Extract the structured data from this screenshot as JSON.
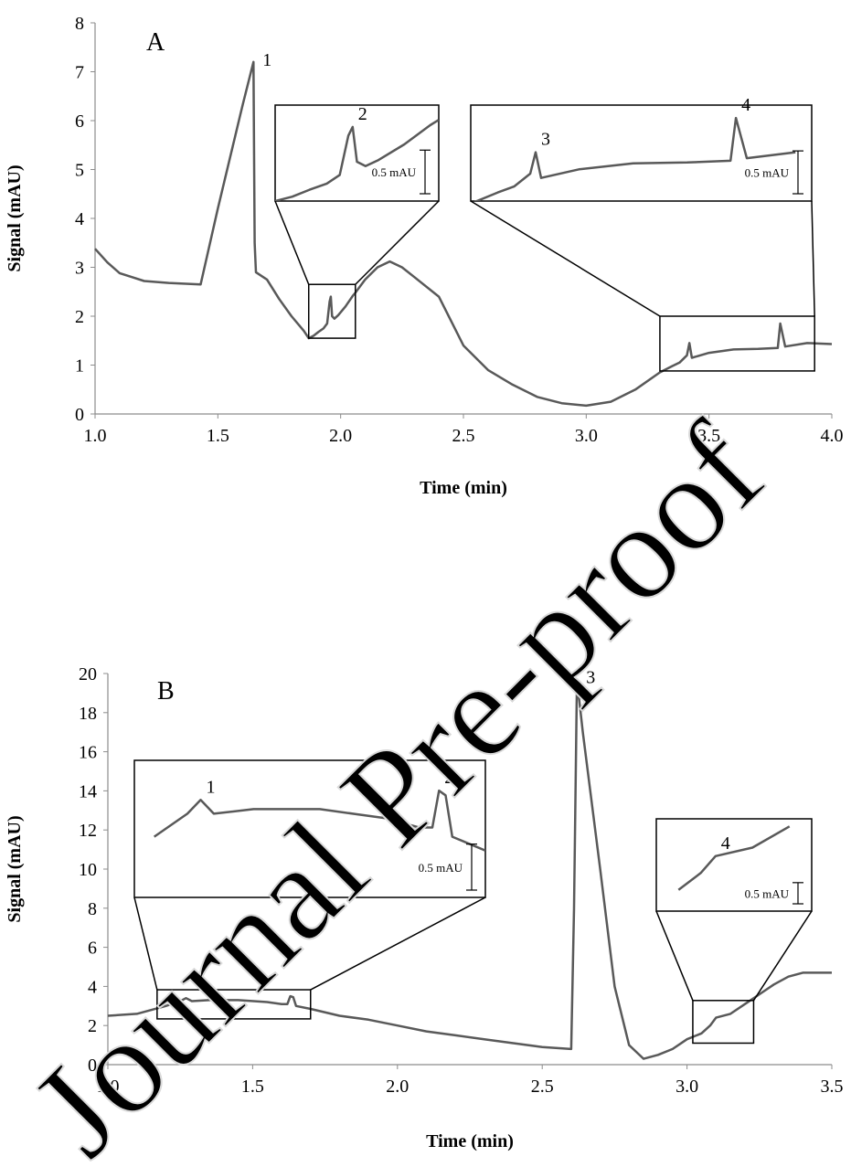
{
  "watermark": "Journal Pre-proof",
  "chart_data": [
    {
      "type": "line",
      "panel_label": "A",
      "x_label": "Time (min)",
      "y_label": "Signal (mAU)",
      "xlim": [
        1,
        4
      ],
      "xticks": [
        {
          "value": 1,
          "label": "1.0"
        },
        1.5,
        {
          "value": 2,
          "label": "2.0"
        },
        2.5,
        {
          "value": 3,
          "label": "3.0"
        },
        3.5,
        {
          "value": 4,
          "label": "4.0"
        }
      ],
      "ylim": [
        0,
        8
      ],
      "yticks": [
        0,
        1,
        2,
        3,
        4,
        5,
        6,
        7,
        8
      ],
      "series": [
        {
          "color": "#595959",
          "x": [
            1.0,
            1.05,
            1.1,
            1.15,
            1.2,
            1.3,
            1.43,
            1.5,
            1.6,
            1.645,
            1.65,
            1.655,
            1.7,
            1.75,
            1.8,
            1.85,
            1.87,
            1.89,
            1.91,
            1.93,
            1.945,
            1.955,
            1.96,
            1.965,
            1.975,
            1.99,
            2.02,
            2.05,
            2.06,
            2.1,
            2.15,
            2.2,
            2.25,
            2.3,
            2.4,
            2.5,
            2.6,
            2.7,
            2.8,
            2.9,
            3.0,
            3.1,
            3.2,
            3.3,
            3.35,
            3.38,
            3.41,
            3.42,
            3.43,
            3.5,
            3.6,
            3.7,
            3.78,
            3.79,
            3.81,
            3.9,
            4.0
          ],
          "values": [
            3.38,
            3.1,
            2.88,
            2.8,
            2.72,
            2.68,
            2.65,
            4.2,
            6.3,
            7.2,
            3.5,
            2.9,
            2.75,
            2.35,
            2.0,
            1.7,
            1.55,
            1.6,
            1.68,
            1.75,
            1.85,
            2.3,
            2.4,
            2.0,
            1.95,
            2.02,
            2.2,
            2.42,
            2.48,
            2.75,
            3.0,
            3.12,
            3.0,
            2.8,
            2.4,
            1.4,
            0.9,
            0.6,
            0.35,
            0.22,
            0.17,
            0.25,
            0.5,
            0.85,
            0.98,
            1.05,
            1.2,
            1.45,
            1.15,
            1.25,
            1.32,
            1.33,
            1.35,
            1.85,
            1.38,
            1.45,
            1.43
          ]
        }
      ],
      "annotations": [
        {
          "text": "1",
          "x": 1.645,
          "y": 7.2
        },
        {
          "text": "2",
          "x": 1.96,
          "y": 2.4
        },
        {
          "text": "3",
          "x": 3.42,
          "y": 1.45
        },
        {
          "text": "4",
          "x": 3.79,
          "y": 1.85
        }
      ],
      "insets": [
        {
          "xlim": [
            1.87,
            2.06
          ],
          "ylim": [
            1.55,
            2.65
          ],
          "scale_bar": {
            "value": 0.5,
            "label": "0.5 mAU"
          }
        },
        {
          "xlim": [
            3.3,
            3.93
          ],
          "ylim": [
            0.88,
            2.0
          ],
          "scale_bar": {
            "value": 0.5,
            "label": "0.5 mAU"
          }
        }
      ]
    },
    {
      "type": "line",
      "panel_label": "B",
      "x_label": "Time (min)",
      "y_label": "Signal (mAU)",
      "xlim": [
        1,
        3.5
      ],
      "xticks": [
        {
          "value": 1,
          "label": "1.0"
        },
        1.5,
        {
          "value": 2,
          "label": "2.0"
        },
        2.5,
        {
          "value": 3,
          "label": "3.0"
        },
        3.5
      ],
      "ylim": [
        0,
        20
      ],
      "yticks": [
        0,
        2,
        4,
        6,
        8,
        10,
        12,
        14,
        16,
        18,
        20
      ],
      "series": [
        {
          "color": "#595959",
          "x": [
            1.0,
            1.1,
            1.2,
            1.25,
            1.27,
            1.29,
            1.35,
            1.45,
            1.55,
            1.6,
            1.62,
            1.63,
            1.64,
            1.65,
            1.7,
            1.8,
            1.9,
            2.0,
            2.1,
            2.2,
            2.3,
            2.4,
            2.5,
            2.6,
            2.61,
            2.62,
            2.64,
            2.7,
            2.75,
            2.8,
            2.85,
            2.9,
            2.95,
            3.0,
            3.05,
            3.08,
            3.1,
            3.15,
            3.2,
            3.25,
            3.3,
            3.35,
            3.4,
            3.5
          ],
          "values": [
            2.5,
            2.6,
            3.0,
            3.25,
            3.4,
            3.25,
            3.3,
            3.3,
            3.2,
            3.1,
            3.1,
            3.5,
            3.45,
            3.0,
            2.85,
            2.5,
            2.3,
            2.0,
            1.7,
            1.5,
            1.3,
            1.1,
            0.9,
            0.8,
            8.0,
            19.7,
            17,
            10,
            4,
            1.0,
            0.3,
            0.5,
            0.8,
            1.3,
            1.6,
            2.0,
            2.4,
            2.6,
            3.1,
            3.6,
            4.1,
            4.5,
            4.7,
            4.7
          ]
        }
      ],
      "annotations": [
        {
          "text": "1",
          "x": 1.27,
          "y": 3.4
        },
        {
          "text": "2",
          "x": 1.63,
          "y": 3.5
        },
        {
          "text": "3",
          "x": 2.62,
          "y": 19.7
        },
        {
          "text": "4",
          "x": 3.1,
          "y": 2.4
        }
      ],
      "insets": [
        {
          "xlim": [
            1.17,
            1.7
          ],
          "ylim": [
            2.34,
            3.83
          ],
          "scale_bar": {
            "value": 0.5,
            "label": "0.5 mAU"
          }
        },
        {
          "xlim": [
            3.02,
            3.23
          ],
          "ylim": [
            1.1,
            3.28
          ],
          "scale_bar": {
            "value": 0.5,
            "label": "0.5 mAU"
          }
        }
      ]
    }
  ]
}
